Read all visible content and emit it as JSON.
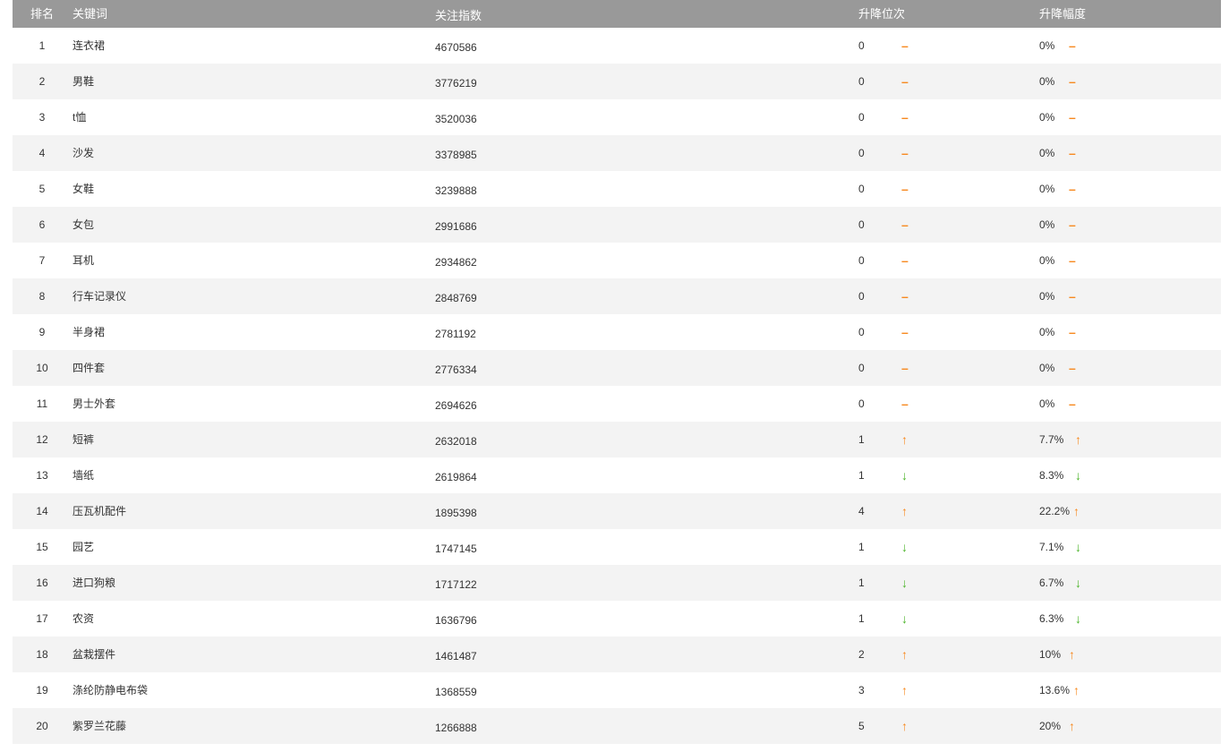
{
  "header": {
    "rank": "排名",
    "keyword": "关键词",
    "index": "关注指数",
    "change": "升降位次",
    "pct": "升降幅度"
  },
  "colors": {
    "header_bg": "#999999",
    "up": "#f7891f",
    "down": "#4bb42a",
    "flat": "#f7891f"
  },
  "rows": [
    {
      "rank": "1",
      "keyword": "连衣裙",
      "index": "4670586",
      "change": "0",
      "trend": "flat",
      "pct": "0%"
    },
    {
      "rank": "2",
      "keyword": "男鞋",
      "index": "3776219",
      "change": "0",
      "trend": "flat",
      "pct": "0%"
    },
    {
      "rank": "3",
      "keyword": "t恤",
      "index": "3520036",
      "change": "0",
      "trend": "flat",
      "pct": "0%"
    },
    {
      "rank": "4",
      "keyword": "沙发",
      "index": "3378985",
      "change": "0",
      "trend": "flat",
      "pct": "0%"
    },
    {
      "rank": "5",
      "keyword": "女鞋",
      "index": "3239888",
      "change": "0",
      "trend": "flat",
      "pct": "0%"
    },
    {
      "rank": "6",
      "keyword": "女包",
      "index": "2991686",
      "change": "0",
      "trend": "flat",
      "pct": "0%"
    },
    {
      "rank": "7",
      "keyword": "耳机",
      "index": "2934862",
      "change": "0",
      "trend": "flat",
      "pct": "0%"
    },
    {
      "rank": "8",
      "keyword": "行车记录仪",
      "index": "2848769",
      "change": "0",
      "trend": "flat",
      "pct": "0%"
    },
    {
      "rank": "9",
      "keyword": "半身裙",
      "index": "2781192",
      "change": "0",
      "trend": "flat",
      "pct": "0%"
    },
    {
      "rank": "10",
      "keyword": "四件套",
      "index": "2776334",
      "change": "0",
      "trend": "flat",
      "pct": "0%"
    },
    {
      "rank": "11",
      "keyword": "男士外套",
      "index": "2694626",
      "change": "0",
      "trend": "flat",
      "pct": "0%"
    },
    {
      "rank": "12",
      "keyword": "短裤",
      "index": "2632018",
      "change": "1",
      "trend": "up",
      "pct": "7.7%"
    },
    {
      "rank": "13",
      "keyword": "墙纸",
      "index": "2619864",
      "change": "1",
      "trend": "down",
      "pct": "8.3%"
    },
    {
      "rank": "14",
      "keyword": "压瓦机配件",
      "index": "1895398",
      "change": "4",
      "trend": "up",
      "pct": "22.2%"
    },
    {
      "rank": "15",
      "keyword": "园艺",
      "index": "1747145",
      "change": "1",
      "trend": "down",
      "pct": "7.1%"
    },
    {
      "rank": "16",
      "keyword": "进口狗粮",
      "index": "1717122",
      "change": "1",
      "trend": "down",
      "pct": "6.7%"
    },
    {
      "rank": "17",
      "keyword": "农资",
      "index": "1636796",
      "change": "1",
      "trend": "down",
      "pct": "6.3%"
    },
    {
      "rank": "18",
      "keyword": "盆栽摆件",
      "index": "1461487",
      "change": "2",
      "trend": "up",
      "pct": "10%"
    },
    {
      "rank": "19",
      "keyword": "涤纶防静电布袋",
      "index": "1368559",
      "change": "3",
      "trend": "up",
      "pct": "13.6%"
    },
    {
      "rank": "20",
      "keyword": "紫罗兰花藤",
      "index": "1266888",
      "change": "5",
      "trend": "up",
      "pct": "20%"
    }
  ]
}
